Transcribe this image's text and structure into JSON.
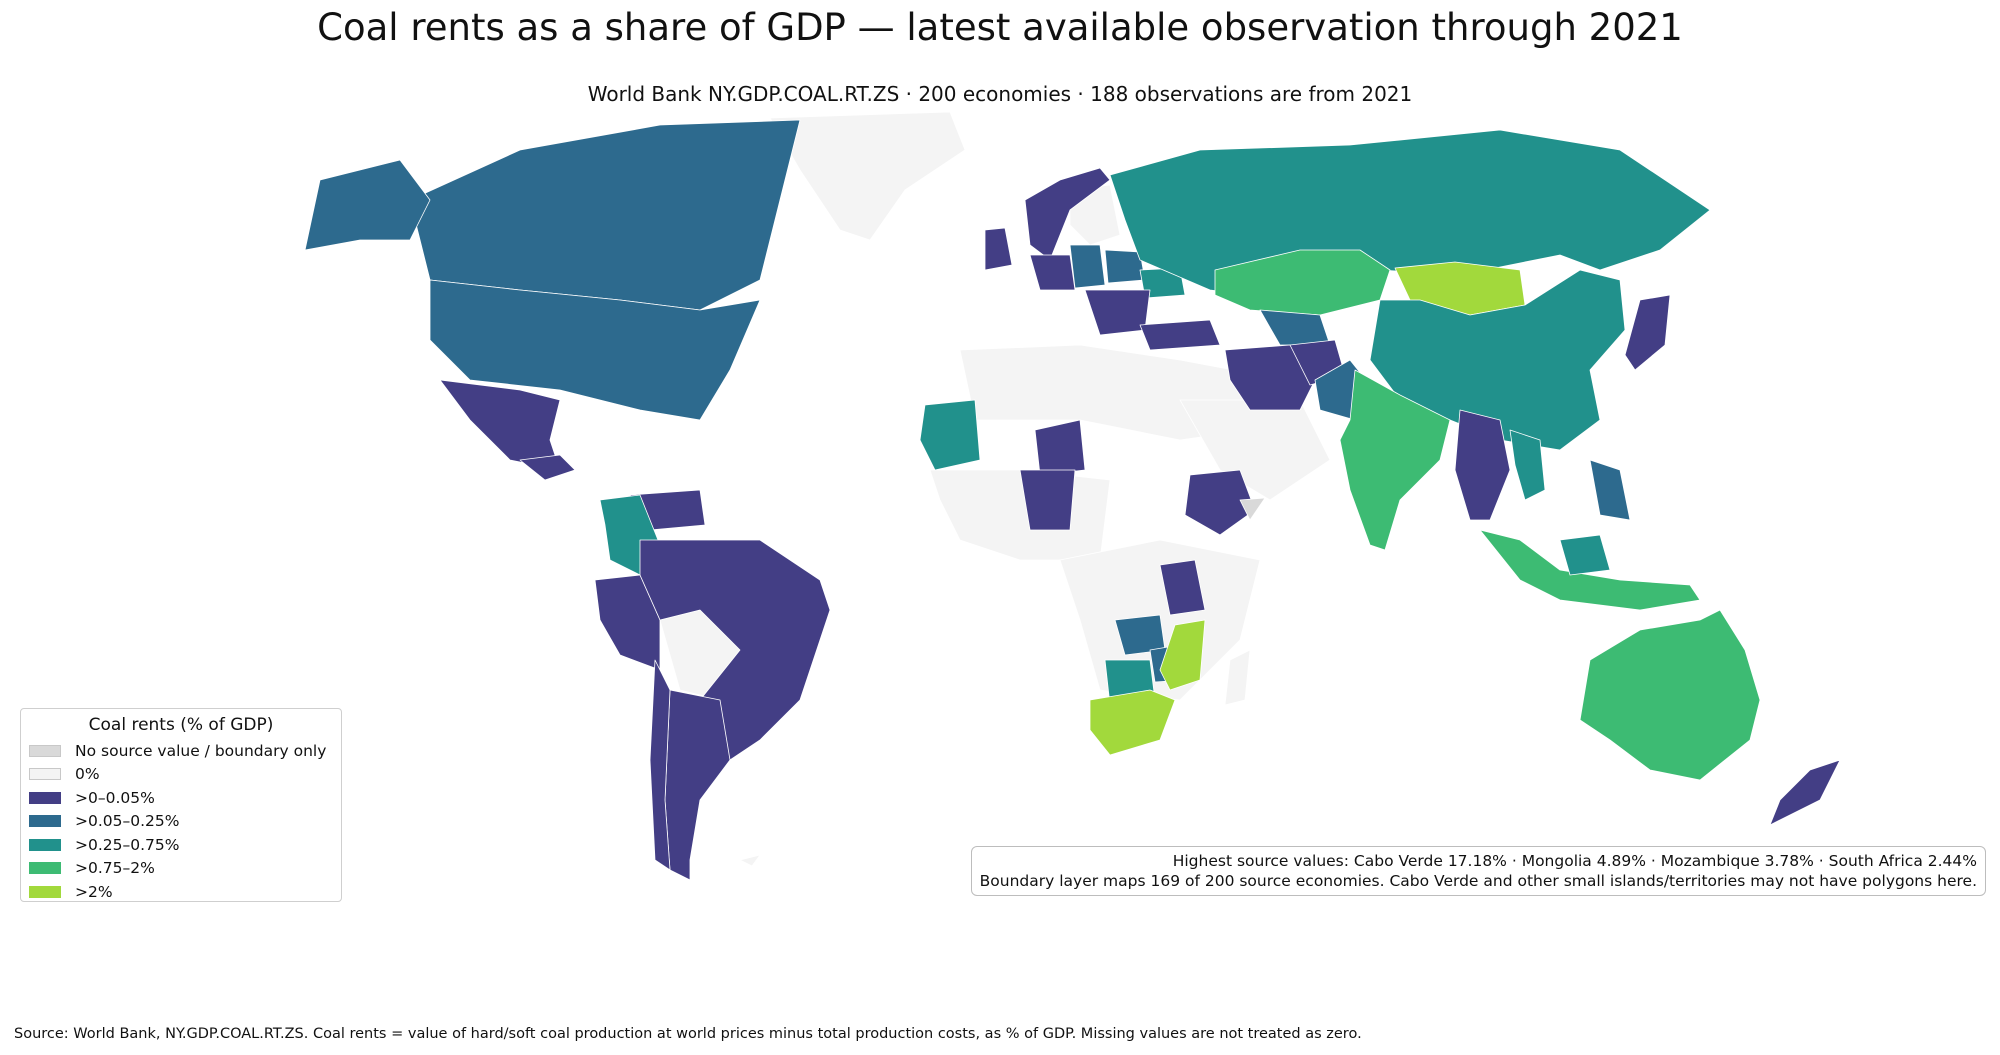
{
  "header": {
    "title": "Coal rents as a share of GDP — latest available observation through 2021",
    "subtitle": "World Bank NY.GDP.COAL.RT.ZS · 200 economies · 188 observations are from 2021"
  },
  "legend": {
    "title": "Coal rents (% of GDP)",
    "items": [
      {
        "label": "No source value / boundary only",
        "color": "#d9d9d9"
      },
      {
        "label": "0%",
        "color": "#f4f4f4"
      },
      {
        "label": ">0–0.05%",
        "color": "#433e85"
      },
      {
        "label": ">0.05–0.25%",
        "color": "#2d6a8e"
      },
      {
        "label": ">0.25–0.75%",
        "color": "#21918c"
      },
      {
        "label": ">0.75–2%",
        "color": "#3dbb73"
      },
      {
        "label": ">2%",
        "color": "#a2d93c"
      }
    ]
  },
  "annotation": {
    "line1": "Highest source values: Cabo Verde 17.18% · Mongolia 4.89% · Mozambique 3.78% · South Africa 2.44%",
    "line2": "Boundary layer maps 169 of 200 source economies. Cabo Verde and other small islands/territories may not have polygons here."
  },
  "footer": {
    "source": "Source: World Bank, NY.GDP.COAL.RT.ZS. Coal rents = value of hard/soft coal production at world prices minus total production costs, as % of GDP. Missing values are not treated as zero."
  },
  "map_data": {
    "top_values": [
      {
        "country": "Cabo Verde",
        "value": 17.18
      },
      {
        "country": "Mongolia",
        "value": 4.89
      },
      {
        "country": "Mozambique",
        "value": 3.78
      },
      {
        "country": "South Africa",
        "value": 2.44
      }
    ],
    "regions": [
      {
        "name": "Greenland",
        "class": 1
      },
      {
        "name": "Antarctica-edge",
        "class": 1
      },
      {
        "name": "North Africa",
        "class": 1
      },
      {
        "name": "Western Africa",
        "class": 1
      },
      {
        "name": "Central Africa",
        "class": 1
      },
      {
        "name": "Arabian Peninsula",
        "class": 1
      },
      {
        "name": "Bolivia",
        "class": 1
      },
      {
        "name": "Madagascar",
        "class": 1
      },
      {
        "name": "Western Europe",
        "class": 1
      },
      {
        "name": "North Korea",
        "class": 0
      },
      {
        "name": "Canada",
        "class": 3
      },
      {
        "name": "United States",
        "class": 3
      },
      {
        "name": "Alaska",
        "class": 3
      },
      {
        "name": "Mexico",
        "class": 2
      },
      {
        "name": "Central America",
        "class": 2
      },
      {
        "name": "Venezuela",
        "class": 2
      },
      {
        "name": "Colombia",
        "class": 4
      },
      {
        "name": "Peru",
        "class": 2
      },
      {
        "name": "Brazil",
        "class": 2
      },
      {
        "name": "Argentina",
        "class": 2
      },
      {
        "name": "Chile",
        "class": 2
      },
      {
        "name": "United Kingdom",
        "class": 2
      },
      {
        "name": "Scandinavia",
        "class": 2
      },
      {
        "name": "France",
        "class": 2
      },
      {
        "name": "Germany",
        "class": 3
      },
      {
        "name": "Poland",
        "class": 3
      },
      {
        "name": "Ukraine",
        "class": 4
      },
      {
        "name": "Balkans",
        "class": 2
      },
      {
        "name": "Turkey",
        "class": 2
      },
      {
        "name": "Russia",
        "class": 4
      },
      {
        "name": "Kazakhstan",
        "class": 5
      },
      {
        "name": "Mongolia",
        "class": 6
      },
      {
        "name": "China",
        "class": 4
      },
      {
        "name": "Uzbekistan",
        "class": 3
      },
      {
        "name": "Iran",
        "class": 2
      },
      {
        "name": "Afghanistan",
        "class": 2
      },
      {
        "name": "Pakistan",
        "class": 3
      },
      {
        "name": "India",
        "class": 5
      },
      {
        "name": "Southeast Asia",
        "class": 2
      },
      {
        "name": "Vietnam",
        "class": 4
      },
      {
        "name": "Japan",
        "class": 2
      },
      {
        "name": "Philippines",
        "class": 3
      },
      {
        "name": "Indonesia",
        "class": 5
      },
      {
        "name": "Malaysia",
        "class": 4
      },
      {
        "name": "Australia",
        "class": 5
      },
      {
        "name": "New Zealand",
        "class": 2
      },
      {
        "name": "Mauritania",
        "class": 4
      },
      {
        "name": "Niger",
        "class": 2
      },
      {
        "name": "Nigeria",
        "class": 2
      },
      {
        "name": "Ethiopia",
        "class": 2
      },
      {
        "name": "Tanzania",
        "class": 2
      },
      {
        "name": "Zambia",
        "class": 3
      },
      {
        "name": "Zimbabwe",
        "class": 3
      },
      {
        "name": "Botswana",
        "class": 4
      },
      {
        "name": "Mozambique",
        "class": 6
      },
      {
        "name": "South Africa",
        "class": 6
      },
      {
        "name": "Somalia",
        "class": 0
      }
    ]
  }
}
